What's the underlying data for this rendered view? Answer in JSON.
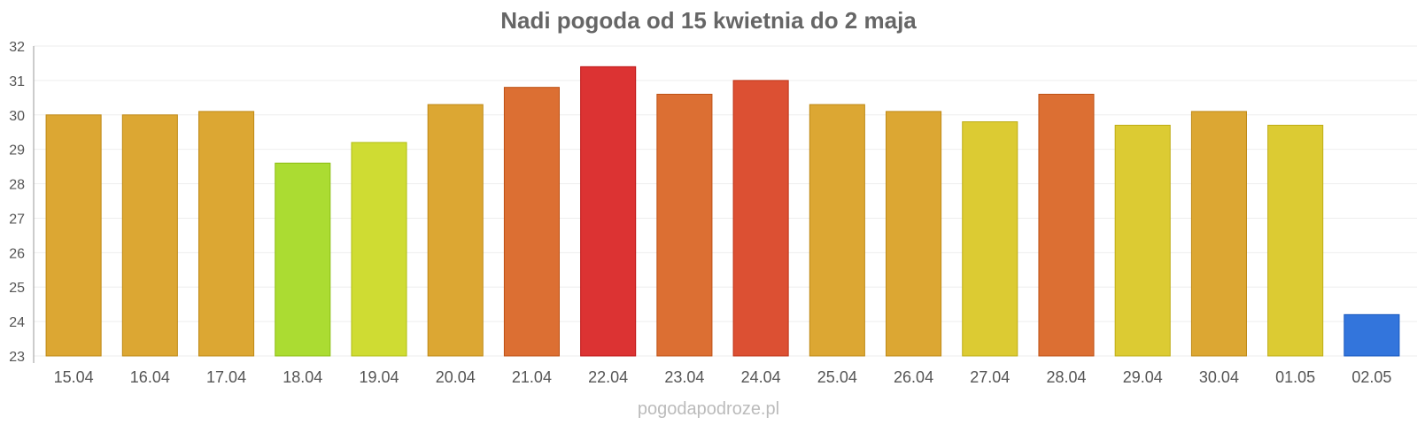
{
  "chart_data": {
    "type": "bar",
    "title": "Nadi pogoda od 15 kwietnia do 2 maja",
    "xlabel": "",
    "ylabel": "",
    "ylim": [
      23,
      32
    ],
    "yticks": [
      23,
      24,
      25,
      26,
      27,
      28,
      29,
      30,
      31,
      32
    ],
    "grid": true,
    "categories": [
      "15.04",
      "16.04",
      "17.04",
      "18.04",
      "19.04",
      "20.04",
      "21.04",
      "22.04",
      "23.04",
      "24.04",
      "25.04",
      "26.04",
      "27.04",
      "28.04",
      "29.04",
      "30.04",
      "01.05",
      "02.05"
    ],
    "values": [
      30.0,
      30.0,
      30.1,
      28.6,
      29.2,
      30.3,
      30.8,
      31.4,
      30.6,
      31.0,
      30.3,
      30.1,
      29.8,
      30.6,
      29.7,
      30.1,
      29.7,
      24.2
    ],
    "colors": [
      "#dca733",
      "#dca733",
      "#dca733",
      "#abdc32",
      "#cfdc33",
      "#dca733",
      "#dc6f33",
      "#dc3333",
      "#dc6f33",
      "#dc5033",
      "#dca733",
      "#dca733",
      "#dccb33",
      "#dc6f33",
      "#dccb33",
      "#dca733",
      "#dccb33",
      "#3375dc"
    ]
  },
  "watermark": "pogodapodroze.pl"
}
